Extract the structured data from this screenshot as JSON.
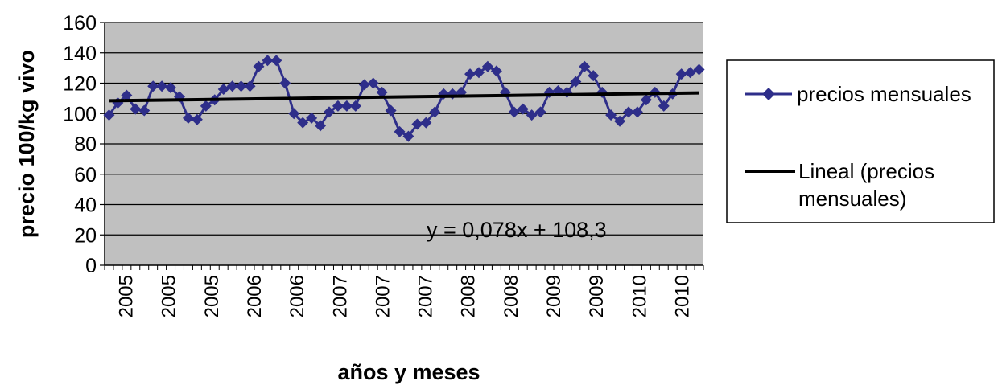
{
  "chart_data": {
    "type": "line",
    "xlabel": "años y meses",
    "ylabel": "precio 100/kg vivo",
    "ylim": [
      0,
      160
    ],
    "yticks": [
      "0",
      "20",
      "40",
      "60",
      "80",
      "100",
      "120",
      "140",
      "160"
    ],
    "xtick_labels": [
      "2005",
      "2005",
      "2005",
      "2006",
      "2006",
      "2007",
      "2007",
      "2007",
      "2008",
      "2008",
      "2009",
      "2009",
      "2010",
      "2010"
    ],
    "grid": "horizontal",
    "legend_position": "right",
    "plot_background": "#c0c0c0",
    "series": [
      {
        "name": "precios mensuales",
        "color": "#2e2e8a",
        "marker": "diamond",
        "values": [
          99,
          107,
          112,
          103,
          102,
          118,
          118,
          117,
          111,
          97,
          96,
          105,
          109,
          116,
          118,
          118,
          118,
          131,
          135,
          135,
          120,
          100,
          94,
          97,
          92,
          101,
          105,
          105,
          105,
          119,
          120,
          114,
          102,
          88,
          85,
          93,
          94,
          101,
          113,
          113,
          114,
          126,
          127,
          131,
          128,
          114,
          101,
          103,
          99,
          101,
          114,
          115,
          114,
          121,
          131,
          125,
          114,
          99,
          95,
          101,
          101,
          109,
          114,
          105,
          113,
          126,
          127,
          129
        ]
      }
    ],
    "trendline": {
      "name": "Lineal (precios mensuales)",
      "color": "#000000",
      "slope": 0.078,
      "intercept": 108.3,
      "equation": "y = 0,078x + 108,3"
    }
  },
  "legend": {
    "series_label": "precios mensuales",
    "trend_label_line1": "Lineal (precios",
    "trend_label_line2": "mensuales)"
  }
}
